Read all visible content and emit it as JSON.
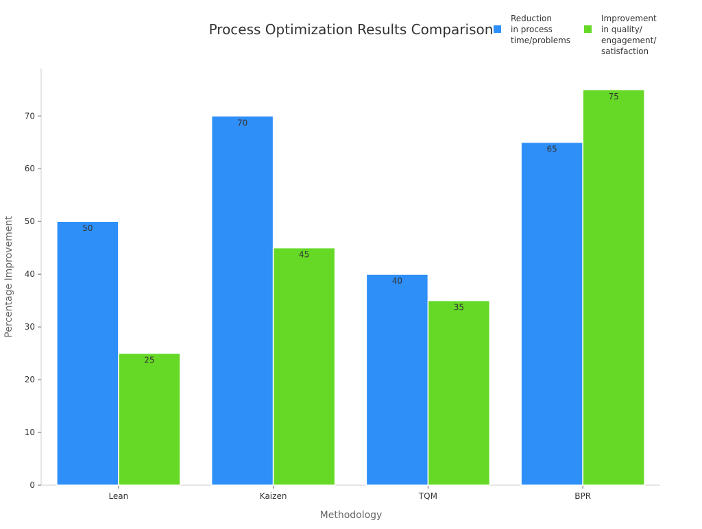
{
  "chart_data": {
    "type": "bar",
    "title": "Process Optimization Results Comparison",
    "xlabel": "Methodology",
    "ylabel": "Percentage Improvement",
    "categories": [
      "Lean",
      "Kaizen",
      "TQM",
      "BPR"
    ],
    "series": [
      {
        "name": "Reduction in process time/problems",
        "legend_lines": [
          "Reduction",
          "in process",
          "time/problems"
        ],
        "color": "#2f8ff8",
        "values": [
          50,
          70,
          40,
          65
        ]
      },
      {
        "name": "Improvement in quality/ engagement/ satisfaction",
        "legend_lines": [
          "Improvement",
          "in quality/",
          "engagement/",
          "satisfaction"
        ],
        "color": "#66d927",
        "values": [
          25,
          45,
          35,
          75
        ]
      }
    ],
    "yticks": [
      0,
      10,
      20,
      30,
      40,
      50,
      60,
      70
    ],
    "ylim": [
      0,
      79
    ],
    "grid": false,
    "legend_position": "top-right",
    "data_labels": true
  }
}
